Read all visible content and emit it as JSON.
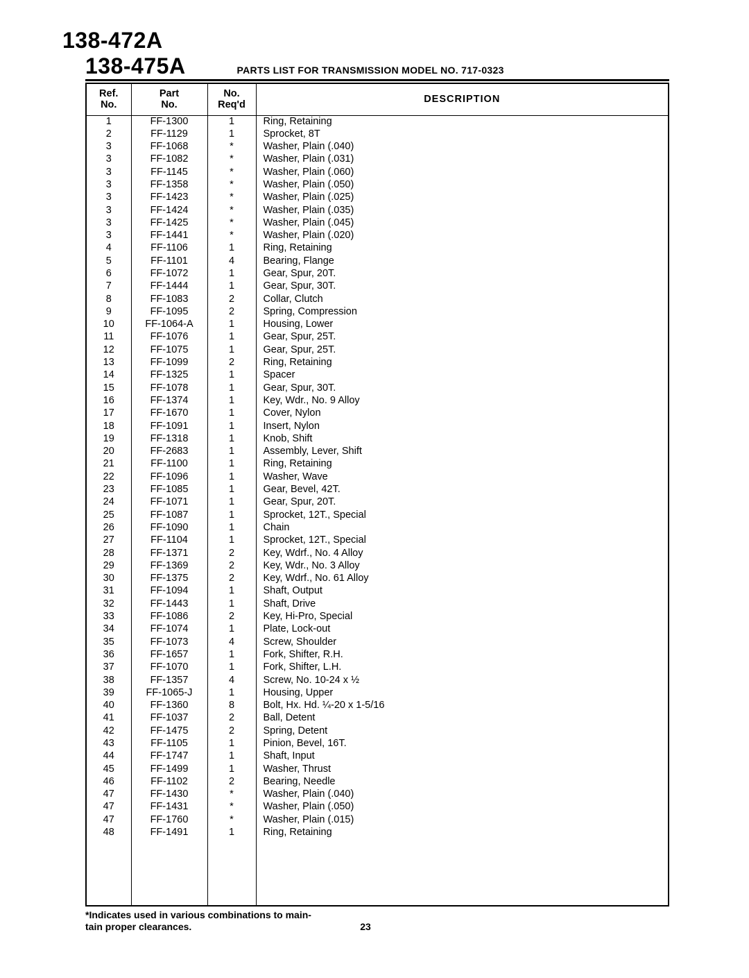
{
  "header": {
    "model_a": "138-472A",
    "model_b": "138-475A",
    "title": "PARTS LIST FOR TRANSMISSION MODEL NO.  717-0323"
  },
  "columns": {
    "ref": "Ref.\nNo.",
    "part": "Part\nNo.",
    "qty": "No.\nReq'd",
    "desc": "DESCRIPTION"
  },
  "rows": [
    {
      "ref": "1",
      "part": "FF-1300",
      "qty": "1",
      "desc": "Ring, Retaining"
    },
    {
      "ref": "2",
      "part": "FF-1129",
      "qty": "1",
      "desc": "Sprocket, 8T"
    },
    {
      "ref": "3",
      "part": "FF-1068",
      "qty": "*",
      "desc": "Washer, Plain (.040)"
    },
    {
      "ref": "3",
      "part": "FF-1082",
      "qty": "*",
      "desc": "Washer, Plain (.031)"
    },
    {
      "ref": "3",
      "part": "FF-1145",
      "qty": "*",
      "desc": "Washer, Plain (.060)"
    },
    {
      "ref": "3",
      "part": "FF-1358",
      "qty": "*",
      "desc": "Washer, Plain (.050)"
    },
    {
      "ref": "3",
      "part": "FF-1423",
      "qty": "*",
      "desc": "Washer, Plain (.025)"
    },
    {
      "ref": "3",
      "part": "FF-1424",
      "qty": "*",
      "desc": "Washer, Plain (.035)"
    },
    {
      "ref": "3",
      "part": "FF-1425",
      "qty": "*",
      "desc": "Washer, Plain (.045)"
    },
    {
      "ref": "3",
      "part": "FF-1441",
      "qty": "*",
      "desc": "Washer, Plain (.020)"
    },
    {
      "ref": "4",
      "part": "FF-1106",
      "qty": "1",
      "desc": "Ring, Retaining"
    },
    {
      "ref": "5",
      "part": "FF-1101",
      "qty": "4",
      "desc": "Bearing, Flange"
    },
    {
      "ref": "6",
      "part": "FF-1072",
      "qty": "1",
      "desc": "Gear, Spur, 20T."
    },
    {
      "ref": "7",
      "part": "FF-1444",
      "qty": "1",
      "desc": "Gear, Spur, 30T."
    },
    {
      "ref": "8",
      "part": "FF-1083",
      "qty": "2",
      "desc": "Collar, Clutch"
    },
    {
      "ref": "9",
      "part": "FF-1095",
      "qty": "2",
      "desc": "Spring, Compression"
    },
    {
      "ref": "10",
      "part": "FF-1064-A",
      "qty": "1",
      "desc": "Housing, Lower"
    },
    {
      "ref": "11",
      "part": "FF-1076",
      "qty": "1",
      "desc": "Gear, Spur, 25T."
    },
    {
      "ref": "12",
      "part": "FF-1075",
      "qty": "1",
      "desc": "Gear, Spur, 25T."
    },
    {
      "ref": "13",
      "part": "FF-1099",
      "qty": "2",
      "desc": "Ring, Retaining"
    },
    {
      "ref": "14",
      "part": "FF-1325",
      "qty": "1",
      "desc": "Spacer"
    },
    {
      "ref": "15",
      "part": "FF-1078",
      "qty": "1",
      "desc": "Gear, Spur, 30T."
    },
    {
      "ref": "16",
      "part": "FF-1374",
      "qty": "1",
      "desc": "Key, Wdr., No. 9 Alloy"
    },
    {
      "ref": "17",
      "part": "FF-1670",
      "qty": "1",
      "desc": "Cover, Nylon"
    },
    {
      "ref": "18",
      "part": "FF-1091",
      "qty": "1",
      "desc": "Insert, Nylon"
    },
    {
      "ref": "19",
      "part": "FF-1318",
      "qty": "1",
      "desc": "Knob, Shift"
    },
    {
      "ref": "20",
      "part": "FF-2683",
      "qty": "1",
      "desc": "Assembly, Lever, Shift"
    },
    {
      "ref": "21",
      "part": "FF-1100",
      "qty": "1",
      "desc": "Ring, Retaining"
    },
    {
      "ref": "22",
      "part": "FF-1096",
      "qty": "1",
      "desc": "Washer, Wave"
    },
    {
      "ref": "23",
      "part": "FF-1085",
      "qty": "1",
      "desc": "Gear, Bevel, 42T."
    },
    {
      "ref": "24",
      "part": "FF-1071",
      "qty": "1",
      "desc": "Gear, Spur, 20T."
    },
    {
      "ref": "25",
      "part": "FF-1087",
      "qty": "1",
      "desc": "Sprocket, 12T., Special"
    },
    {
      "ref": "26",
      "part": "FF-1090",
      "qty": "1",
      "desc": "Chain"
    },
    {
      "ref": "27",
      "part": "FF-1104",
      "qty": "1",
      "desc": "Sprocket, 12T., Special"
    },
    {
      "ref": "28",
      "part": "FF-1371",
      "qty": "2",
      "desc": "Key, Wdrf., No. 4 Alloy"
    },
    {
      "ref": "29",
      "part": "FF-1369",
      "qty": "2",
      "desc": "Key, Wdr., No. 3 Alloy"
    },
    {
      "ref": "30",
      "part": "FF-1375",
      "qty": "2",
      "desc": "Key, Wdrf., No. 61 Alloy"
    },
    {
      "ref": "31",
      "part": "FF-1094",
      "qty": "1",
      "desc": "Shaft, Output"
    },
    {
      "ref": "32",
      "part": "FF-1443",
      "qty": "1",
      "desc": "Shaft, Drive"
    },
    {
      "ref": "33",
      "part": "FF-1086",
      "qty": "2",
      "desc": "Key, Hi-Pro, Special"
    },
    {
      "ref": "34",
      "part": "FF-1074",
      "qty": "1",
      "desc": "Plate, Lock-out"
    },
    {
      "ref": "35",
      "part": "FF-1073",
      "qty": "4",
      "desc": "Screw, Shoulder"
    },
    {
      "ref": "36",
      "part": "FF-1657",
      "qty": "1",
      "desc": "Fork, Shifter, R.H."
    },
    {
      "ref": "37",
      "part": "FF-1070",
      "qty": "1",
      "desc": "Fork, Shifter, L.H."
    },
    {
      "ref": "38",
      "part": "FF-1357",
      "qty": "4",
      "desc": "Screw, No. 10-24 x ½"
    },
    {
      "ref": "39",
      "part": "FF-1065-J",
      "qty": "1",
      "desc": "Housing, Upper"
    },
    {
      "ref": "40",
      "part": "FF-1360",
      "qty": "8",
      "desc": "Bolt, Hx. Hd. ¼-20 x 1-5/16"
    },
    {
      "ref": "41",
      "part": "FF-1037",
      "qty": "2",
      "desc": "Ball, Detent"
    },
    {
      "ref": "42",
      "part": "FF-1475",
      "qty": "2",
      "desc": "Spring, Detent"
    },
    {
      "ref": "43",
      "part": "FF-1105",
      "qty": "1",
      "desc": "Pinion, Bevel, 16T."
    },
    {
      "ref": "44",
      "part": "FF-1747",
      "qty": "1",
      "desc": "Shaft, Input"
    },
    {
      "ref": "45",
      "part": "FF-1499",
      "qty": "1",
      "desc": "Washer, Thrust"
    },
    {
      "ref": "46",
      "part": "FF-1102",
      "qty": "2",
      "desc": "Bearing, Needle"
    },
    {
      "ref": "47",
      "part": "FF-1430",
      "qty": "*",
      "desc": "Washer, Plain (.040)"
    },
    {
      "ref": "47",
      "part": "FF-1431",
      "qty": "*",
      "desc": "Washer, Plain (.050)"
    },
    {
      "ref": "47",
      "part": "FF-1760",
      "qty": "*",
      "desc": "Washer, Plain (.015)"
    },
    {
      "ref": "48",
      "part": "FF-1491",
      "qty": "1",
      "desc": "Ring, Retaining"
    }
  ],
  "footnote": {
    "line1": "*Indicates used in various combinations to main-",
    "line2_a": "tain proper clearances.",
    "page": "23"
  }
}
